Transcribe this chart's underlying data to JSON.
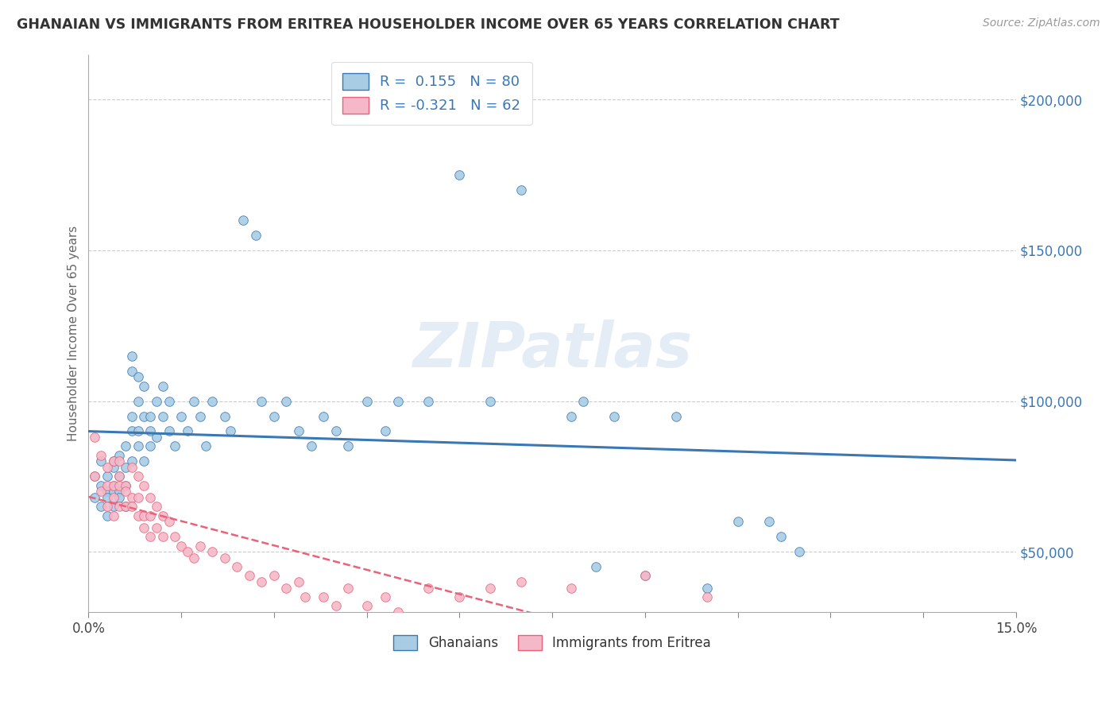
{
  "title": "GHANAIAN VS IMMIGRANTS FROM ERITREA HOUSEHOLDER INCOME OVER 65 YEARS CORRELATION CHART",
  "source": "Source: ZipAtlas.com",
  "ylabel": "Householder Income Over 65 years",
  "xlim": [
    0.0,
    0.15
  ],
  "ylim_display": [
    30000,
    215000
  ],
  "ytick_vals": [
    50000,
    100000,
    150000,
    200000
  ],
  "r1": 0.155,
  "n1": 80,
  "r2": -0.321,
  "n2": 62,
  "color_ghanaian": "#a8cce4",
  "color_eritrea": "#f4b8c8",
  "line_color_ghanaian": "#3a78b5",
  "line_color_eritrea": "#e8637a",
  "watermark": "ZIPatlas",
  "background_color": "#ffffff",
  "grid_color": "#cccccc",
  "ghanaian_x": [
    0.001,
    0.001,
    0.002,
    0.002,
    0.002,
    0.003,
    0.003,
    0.003,
    0.003,
    0.004,
    0.004,
    0.004,
    0.004,
    0.004,
    0.005,
    0.005,
    0.005,
    0.005,
    0.006,
    0.006,
    0.006,
    0.006,
    0.007,
    0.007,
    0.007,
    0.007,
    0.007,
    0.008,
    0.008,
    0.008,
    0.008,
    0.009,
    0.009,
    0.009,
    0.01,
    0.01,
    0.01,
    0.011,
    0.011,
    0.012,
    0.012,
    0.013,
    0.013,
    0.014,
    0.015,
    0.016,
    0.017,
    0.018,
    0.019,
    0.02,
    0.022,
    0.023,
    0.025,
    0.027,
    0.028,
    0.03,
    0.032,
    0.034,
    0.036,
    0.038,
    0.04,
    0.042,
    0.045,
    0.048,
    0.05,
    0.055,
    0.06,
    0.065,
    0.07,
    0.078,
    0.08,
    0.082,
    0.085,
    0.09,
    0.095,
    0.1,
    0.105,
    0.11,
    0.112,
    0.115
  ],
  "ghanaian_y": [
    68000,
    75000,
    72000,
    65000,
    80000,
    70000,
    62000,
    75000,
    68000,
    72000,
    78000,
    65000,
    70000,
    80000,
    75000,
    82000,
    70000,
    68000,
    78000,
    72000,
    85000,
    65000,
    80000,
    110000,
    90000,
    115000,
    95000,
    108000,
    100000,
    90000,
    85000,
    105000,
    95000,
    80000,
    90000,
    85000,
    95000,
    100000,
    88000,
    105000,
    95000,
    100000,
    90000,
    85000,
    95000,
    90000,
    100000,
    95000,
    85000,
    100000,
    95000,
    90000,
    160000,
    155000,
    100000,
    95000,
    100000,
    90000,
    85000,
    95000,
    90000,
    85000,
    100000,
    90000,
    100000,
    100000,
    175000,
    100000,
    170000,
    95000,
    100000,
    45000,
    95000,
    42000,
    95000,
    38000,
    60000,
    60000,
    55000,
    50000
  ],
  "eritrea_x": [
    0.001,
    0.001,
    0.002,
    0.002,
    0.003,
    0.003,
    0.003,
    0.004,
    0.004,
    0.004,
    0.004,
    0.005,
    0.005,
    0.005,
    0.005,
    0.006,
    0.006,
    0.006,
    0.007,
    0.007,
    0.007,
    0.008,
    0.008,
    0.008,
    0.009,
    0.009,
    0.009,
    0.01,
    0.01,
    0.01,
    0.011,
    0.011,
    0.012,
    0.012,
    0.013,
    0.014,
    0.015,
    0.016,
    0.017,
    0.018,
    0.02,
    0.022,
    0.024,
    0.026,
    0.028,
    0.03,
    0.032,
    0.034,
    0.035,
    0.038,
    0.04,
    0.042,
    0.045,
    0.048,
    0.05,
    0.055,
    0.06,
    0.065,
    0.07,
    0.078,
    0.09,
    0.1
  ],
  "eritrea_y": [
    88000,
    75000,
    82000,
    70000,
    78000,
    65000,
    72000,
    80000,
    68000,
    72000,
    62000,
    80000,
    72000,
    65000,
    75000,
    72000,
    65000,
    70000,
    78000,
    68000,
    65000,
    75000,
    68000,
    62000,
    72000,
    62000,
    58000,
    68000,
    62000,
    55000,
    65000,
    58000,
    62000,
    55000,
    60000,
    55000,
    52000,
    50000,
    48000,
    52000,
    50000,
    48000,
    45000,
    42000,
    40000,
    42000,
    38000,
    40000,
    35000,
    35000,
    32000,
    38000,
    32000,
    35000,
    30000,
    38000,
    35000,
    38000,
    40000,
    38000,
    42000,
    35000
  ]
}
